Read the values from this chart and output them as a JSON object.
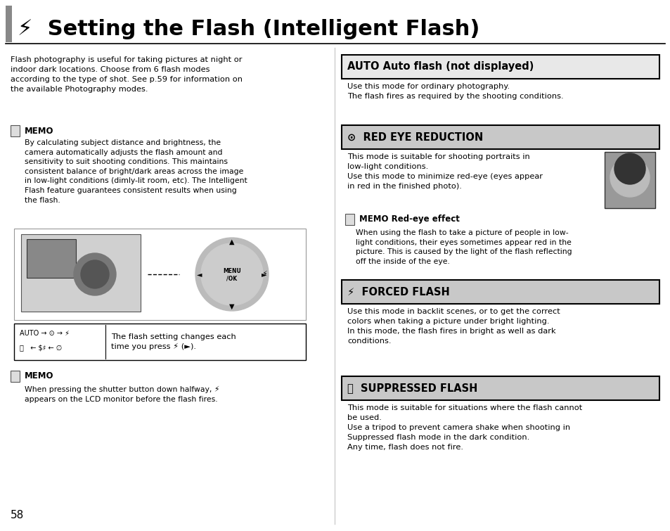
{
  "bg_color": "#ffffff",
  "page_number": "58",
  "title": "⚡  Setting the Flash (Intelligent Flash)",
  "intro_text": "Flash photography is useful for taking pictures at night or\nindoor dark locations. Choose from 6 flash modes\naccording to the type of shot. See p.59 for information on\nthe available Photography modes.",
  "memo1_title": "MEMO",
  "memo1_text": "By calculating subject distance and brightness, the\ncamera automatically adjusts the flash amount and\nsensitivity to suit shooting conditions. This maintains\nconsistent balance of bright/dark areas across the image\nin low-light conditions (dimly-lit room, etc). The Intelligent\nFlash feature guarantees consistent results when using\nthe flash.",
  "flash_caption": "The flash setting changes each\ntime you press ⚡ (►).",
  "memo2_title": "MEMO",
  "memo2_text": "When pressing the shutter button down halfway, ⚡\nappears on the LCD monitor before the flash fires.",
  "section1_title": "AUTO Auto flash (not displayed)",
  "section1_text": "Use this mode for ordinary photography.\nThe flash fires as required by the shooting conditions.",
  "section2_title": "⊙  RED EYE REDUCTION",
  "section2_text": "This mode is suitable for shooting portraits in\nlow-light conditions.\nUse this mode to minimize red-eye (eyes appear\nin red in the finished photo).",
  "memo_red_title": "MEMO Red-eye effect",
  "memo_red_text": "When using the flash to take a picture of people in low-\nlight conditions, their eyes sometimes appear red in the\npicture. This is caused by the light of the flash reflecting\noff the inside of the eye.",
  "section3_title": "⚡  FORCED FLASH",
  "section3_text": "Use this mode in backlit scenes, or to get the correct\ncolors when taking a picture under bright lighting.\nIn this mode, the flash fires in bright as well as dark\nconditions.",
  "section4_title": "Ⓣ  SUPPRESSED FLASH",
  "section4_text": "This mode is suitable for situations where the flash cannot\nbe used.\nUse a tripod to prevent camera shake when shooting in\nSuppressed flash mode in the dark condition.\nAny time, flash does not fire."
}
